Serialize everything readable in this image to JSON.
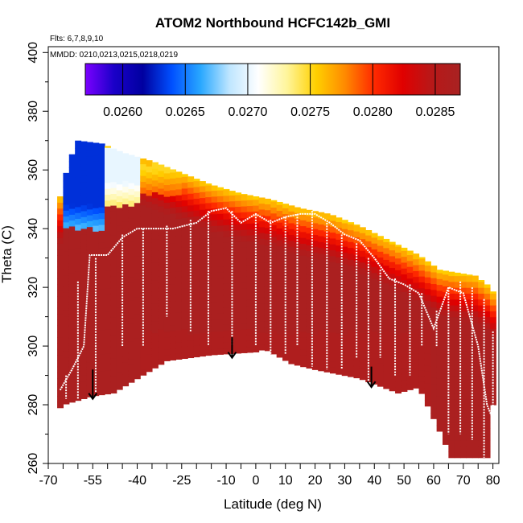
{
  "chart_data": {
    "type": "heatmap",
    "title": "ATOM2 Northbound HCFC142b_GMI",
    "flights_note": "Flts: 6,7,8,9,10",
    "mmdd_note": "MMDD: 0210,0213,0215,0218,0219",
    "xlabel": "Latitude (deg N)",
    "ylabel": "Theta (C)",
    "xlim": [
      -70,
      82
    ],
    "ylim": [
      260,
      402
    ],
    "x_ticks": [
      -70,
      -55,
      -40,
      -25,
      -10,
      0,
      10,
      20,
      30,
      40,
      50,
      60,
      70,
      80
    ],
    "y_ticks": [
      260,
      280,
      300,
      320,
      340,
      360,
      380,
      400
    ],
    "colorbar": {
      "min": 0.0257,
      "max": 0.0287,
      "ticks": [
        "0.0260",
        "0.0265",
        "0.0270",
        "0.0275",
        "0.0280",
        "0.0285"
      ],
      "colors": [
        "#7b00ff",
        "#1a00c8",
        "#0000a0",
        "#0050ff",
        "#29a8ff",
        "#bfe6ff",
        "#ffffff",
        "#fff59a",
        "#ffd000",
        "#ff8a00",
        "#ff2a00",
        "#e00000",
        "#b81818",
        "#a82222"
      ]
    },
    "grid": false,
    "field": {
      "upper_boundary": [
        {
          "lat": -67,
          "theta": 347
        },
        {
          "lat": -63,
          "theta": 363
        },
        {
          "lat": -60,
          "theta": 370
        },
        {
          "lat": -52,
          "theta": 369
        },
        {
          "lat": -45,
          "theta": 366
        },
        {
          "lat": -35,
          "theta": 363
        },
        {
          "lat": -25,
          "theta": 359
        },
        {
          "lat": -15,
          "theta": 355
        },
        {
          "lat": -5,
          "theta": 352
        },
        {
          "lat": 5,
          "theta": 350
        },
        {
          "lat": 15,
          "theta": 347
        },
        {
          "lat": 25,
          "theta": 345
        },
        {
          "lat": 35,
          "theta": 341
        },
        {
          "lat": 45,
          "theta": 336
        },
        {
          "lat": 55,
          "theta": 331
        },
        {
          "lat": 62,
          "theta": 326
        },
        {
          "lat": 68,
          "theta": 325
        },
        {
          "lat": 74,
          "theta": 324
        },
        {
          "lat": 78,
          "theta": 321
        },
        {
          "lat": 80.5,
          "theta": 318
        }
      ],
      "lower_boundary": [
        {
          "lat": -68,
          "theta": 277
        },
        {
          "lat": -65,
          "theta": 280
        },
        {
          "lat": -55,
          "theta": 283
        },
        {
          "lat": -48,
          "theta": 284
        },
        {
          "lat": -30,
          "theta": 295
        },
        {
          "lat": -15,
          "theta": 297
        },
        {
          "lat": 0,
          "theta": 298
        },
        {
          "lat": 3,
          "theta": 299
        },
        {
          "lat": 12,
          "theta": 294
        },
        {
          "lat": 20,
          "theta": 292
        },
        {
          "lat": 35,
          "theta": 289
        },
        {
          "lat": 48,
          "theta": 284
        },
        {
          "lat": 55,
          "theta": 286
        },
        {
          "lat": 62,
          "theta": 271
        },
        {
          "lat": 66,
          "theta": 262
        },
        {
          "lat": 78,
          "theta": 262
        },
        {
          "lat": 80,
          "theta": 280
        }
      ],
      "low_value_regions": [
        {
          "lat_min": -64,
          "lat_max": -52,
          "theta_min": 340,
          "theta_max": 370,
          "value": 0.0263
        },
        {
          "lat_min": -52,
          "lat_max": -40,
          "theta_min": 348,
          "theta_max": 368,
          "value": 0.027
        },
        {
          "lat_min": -40,
          "lat_max": -25,
          "theta_min": 352,
          "theta_max": 362,
          "value": 0.0275
        }
      ]
    },
    "flight_track": [
      {
        "lat": -66,
        "theta": 285
      },
      {
        "lat": -62,
        "theta": 292
      },
      {
        "lat": -58,
        "theta": 300
      },
      {
        "lat": -56,
        "theta": 331
      },
      {
        "lat": -50,
        "theta": 331
      },
      {
        "lat": -45,
        "theta": 337
      },
      {
        "lat": -40,
        "theta": 340
      },
      {
        "lat": -35,
        "theta": 340
      },
      {
        "lat": -28,
        "theta": 340
      },
      {
        "lat": -20,
        "theta": 342
      },
      {
        "lat": -15,
        "theta": 346
      },
      {
        "lat": -10,
        "theta": 347
      },
      {
        "lat": -5,
        "theta": 342
      },
      {
        "lat": 0,
        "theta": 345
      },
      {
        "lat": 5,
        "theta": 342
      },
      {
        "lat": 10,
        "theta": 344
      },
      {
        "lat": 15,
        "theta": 345
      },
      {
        "lat": 20,
        "theta": 345
      },
      {
        "lat": 25,
        "theta": 342
      },
      {
        "lat": 30,
        "theta": 338
      },
      {
        "lat": 35,
        "theta": 336
      },
      {
        "lat": 40,
        "theta": 330
      },
      {
        "lat": 45,
        "theta": 323
      },
      {
        "lat": 50,
        "theta": 321
      },
      {
        "lat": 55,
        "theta": 318
      },
      {
        "lat": 60,
        "theta": 306
      },
      {
        "lat": 65,
        "theta": 320
      },
      {
        "lat": 70,
        "theta": 318
      },
      {
        "lat": 75,
        "theta": 300
      },
      {
        "lat": 78,
        "theta": 280
      },
      {
        "lat": 80,
        "theta": 275
      }
    ],
    "profiles": [
      {
        "lat": -64,
        "top": 290,
        "bottom": 282
      },
      {
        "lat": -60,
        "top": 322,
        "bottom": 282
      },
      {
        "lat": -54,
        "top": 330,
        "bottom": 284
      },
      {
        "lat": -45,
        "top": 338,
        "bottom": 300
      },
      {
        "lat": -38,
        "top": 340,
        "bottom": 300
      },
      {
        "lat": -30,
        "top": 341,
        "bottom": 310
      },
      {
        "lat": -22,
        "top": 343,
        "bottom": 305
      },
      {
        "lat": -16,
        "top": 346,
        "bottom": 300
      },
      {
        "lat": -8,
        "top": 346,
        "bottom": 300
      },
      {
        "lat": 0,
        "top": 345,
        "bottom": 300
      },
      {
        "lat": 5,
        "top": 343,
        "bottom": 296
      },
      {
        "lat": 10,
        "top": 344,
        "bottom": 297
      },
      {
        "lat": 14,
        "top": 345,
        "bottom": 300
      },
      {
        "lat": 19,
        "top": 346,
        "bottom": 293
      },
      {
        "lat": 24,
        "top": 342,
        "bottom": 292
      },
      {
        "lat": 29,
        "top": 338,
        "bottom": 292
      },
      {
        "lat": 34,
        "top": 335,
        "bottom": 296
      },
      {
        "lat": 38,
        "top": 330,
        "bottom": 288
      },
      {
        "lat": 42,
        "top": 326,
        "bottom": 296
      },
      {
        "lat": 47,
        "top": 323,
        "bottom": 290
      },
      {
        "lat": 52,
        "top": 321,
        "bottom": 290
      },
      {
        "lat": 56,
        "top": 318,
        "bottom": 300
      },
      {
        "lat": 61,
        "top": 312,
        "bottom": 300
      },
      {
        "lat": 65,
        "top": 320,
        "bottom": 270
      },
      {
        "lat": 69,
        "top": 322,
        "bottom": 270
      },
      {
        "lat": 73,
        "top": 320,
        "bottom": 268
      },
      {
        "lat": 77,
        "top": 316,
        "bottom": 262
      },
      {
        "lat": 80,
        "top": 305,
        "bottom": 262
      }
    ],
    "arrows": [
      {
        "lat": -55,
        "theta_top": 292,
        "theta_bottom": 282
      },
      {
        "lat": -8,
        "theta_top": 303,
        "theta_bottom": 296
      },
      {
        "lat": 39,
        "theta_top": 293,
        "theta_bottom": 286
      }
    ]
  }
}
